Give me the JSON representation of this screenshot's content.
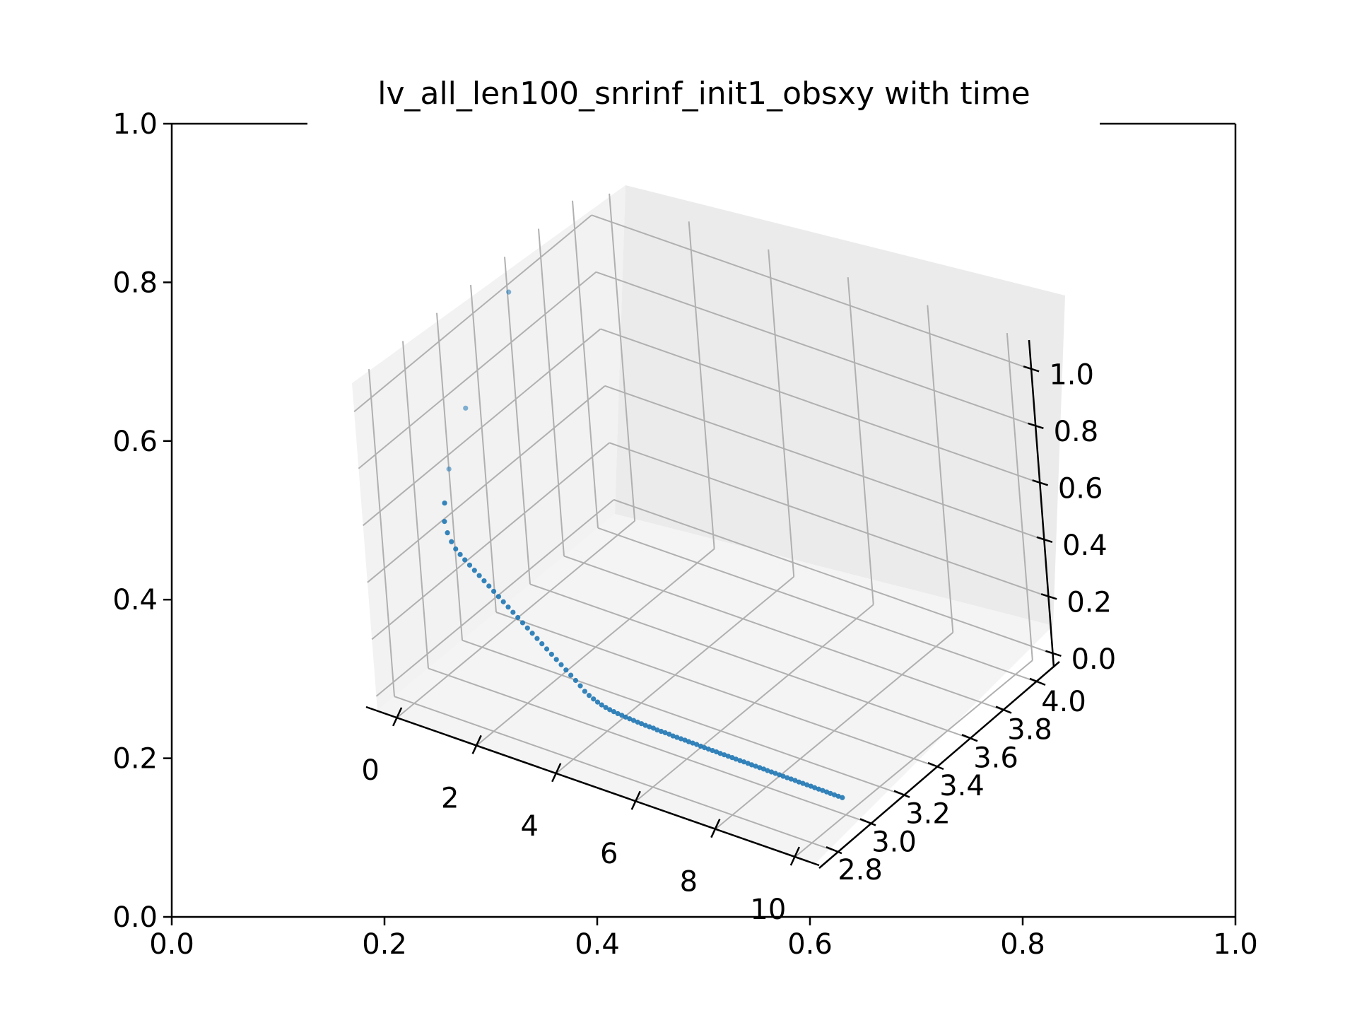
{
  "chart_data": {
    "type": "scatter",
    "projection": "3d",
    "title": "lv_all_len100_snrinf_init1_obsxy with time",
    "background_axes": {
      "xlim": [
        0.0,
        1.0
      ],
      "ylim": [
        0.0,
        1.0
      ],
      "x_ticks": [
        "0.0",
        "0.2",
        "0.4",
        "0.6",
        "0.8",
        "1.0"
      ],
      "y_ticks": [
        "0.0",
        "0.2",
        "0.4",
        "0.6",
        "0.8",
        "1.0"
      ]
    },
    "axes3d": {
      "x_ticks": [
        "0",
        "2",
        "4",
        "6",
        "8",
        "10"
      ],
      "y_ticks": [
        "2.8",
        "3.0",
        "3.2",
        "3.4",
        "3.6",
        "3.8",
        "4.0"
      ],
      "z_ticks": [
        "0.0",
        "0.2",
        "0.4",
        "0.6",
        "0.8",
        "1.0"
      ],
      "xlim": [
        -0.5,
        10.5
      ],
      "ylim": [
        2.7,
        4.1
      ],
      "zlim": [
        -0.05,
        1.1
      ],
      "grid": true
    },
    "series": [
      {
        "color": "#1f77b4",
        "points": [
          [
            0.0,
            3.5,
            1.05
          ],
          [
            0.1,
            3.19,
            0.8
          ],
          [
            0.2,
            3.05,
            0.66
          ],
          [
            0.3,
            2.99,
            0.575
          ],
          [
            0.4,
            2.96,
            0.53
          ],
          [
            0.5,
            2.95,
            0.5
          ],
          [
            0.6,
            2.947,
            0.475
          ],
          [
            0.7,
            2.946,
            0.455
          ],
          [
            0.8,
            2.947,
            0.44
          ],
          [
            0.9,
            2.949,
            0.425
          ],
          [
            1.0,
            2.952,
            0.41
          ],
          [
            1.1,
            2.955,
            0.395
          ],
          [
            1.2,
            2.958,
            0.38
          ],
          [
            1.3,
            2.961,
            0.365
          ],
          [
            1.4,
            2.964,
            0.35
          ],
          [
            1.5,
            2.967,
            0.335
          ],
          [
            1.6,
            2.97,
            0.32
          ],
          [
            1.7,
            2.973,
            0.305
          ],
          [
            1.8,
            2.976,
            0.29
          ],
          [
            1.9,
            2.979,
            0.275
          ],
          [
            2.0,
            2.982,
            0.26
          ],
          [
            2.1,
            2.985,
            0.245
          ],
          [
            2.2,
            2.988,
            0.23
          ],
          [
            2.3,
            2.991,
            0.215
          ],
          [
            2.4,
            2.994,
            0.2
          ],
          [
            2.5,
            2.997,
            0.185
          ],
          [
            2.6,
            3.0,
            0.17
          ],
          [
            2.7,
            3.003,
            0.155
          ],
          [
            2.8,
            3.006,
            0.14
          ],
          [
            2.9,
            3.009,
            0.125
          ],
          [
            3.0,
            3.012,
            0.11
          ],
          [
            3.1,
            3.015,
            0.095
          ],
          [
            3.2,
            3.018,
            0.08
          ],
          [
            3.3,
            3.02,
            0.065
          ],
          [
            3.4,
            3.021,
            0.05
          ],
          [
            3.5,
            3.022,
            0.04
          ],
          [
            3.6,
            3.023,
            0.032
          ],
          [
            3.7,
            3.023,
            0.026
          ],
          [
            3.8,
            3.023,
            0.021
          ],
          [
            3.9,
            3.023,
            0.017
          ],
          [
            4.0,
            3.023,
            0.014
          ],
          [
            4.1,
            3.023,
            0.012
          ],
          [
            4.2,
            3.023,
            0.01
          ],
          [
            4.3,
            3.023,
            0.009
          ],
          [
            4.4,
            3.022,
            0.008
          ],
          [
            4.5,
            3.022,
            0.007
          ],
          [
            4.6,
            3.022,
            0.006
          ],
          [
            4.7,
            3.022,
            0.005
          ],
          [
            4.8,
            3.021,
            0.005
          ],
          [
            4.9,
            3.021,
            0.004
          ],
          [
            5.0,
            3.021,
            0.004
          ],
          [
            5.1,
            3.021,
            0.004
          ],
          [
            5.2,
            3.02,
            0.003
          ],
          [
            5.3,
            3.02,
            0.003
          ],
          [
            5.4,
            3.02,
            0.003
          ],
          [
            5.5,
            3.02,
            0.003
          ],
          [
            5.6,
            3.019,
            0.002
          ],
          [
            5.7,
            3.019,
            0.002
          ],
          [
            5.8,
            3.019,
            0.002
          ],
          [
            5.9,
            3.019,
            0.002
          ],
          [
            6.0,
            3.018,
            0.002
          ],
          [
            6.1,
            3.018,
            0.002
          ],
          [
            6.2,
            3.018,
            0.002
          ],
          [
            6.3,
            3.018,
            0.001
          ],
          [
            6.4,
            3.017,
            0.001
          ],
          [
            6.5,
            3.017,
            0.001
          ],
          [
            6.6,
            3.017,
            0.001
          ],
          [
            6.7,
            3.017,
            0.001
          ],
          [
            6.8,
            3.016,
            0.001
          ],
          [
            6.9,
            3.016,
            0.001
          ],
          [
            7.0,
            3.016,
            0.001
          ],
          [
            7.1,
            3.016,
            0.001
          ],
          [
            7.2,
            3.015,
            0.001
          ],
          [
            7.3,
            3.015,
            0.001
          ],
          [
            7.4,
            3.015,
            0.001
          ],
          [
            7.5,
            3.015,
            0.001
          ],
          [
            7.6,
            3.014,
            0.001
          ],
          [
            7.7,
            3.014,
            0.001
          ],
          [
            7.8,
            3.014,
            0.001
          ],
          [
            7.9,
            3.014,
            0.001
          ],
          [
            8.0,
            3.013,
            0.001
          ],
          [
            8.1,
            3.013,
            0.001
          ],
          [
            8.2,
            3.013,
            0.001
          ],
          [
            8.3,
            3.013,
            0.001
          ],
          [
            8.4,
            3.012,
            0.001
          ],
          [
            8.5,
            3.012,
            0.001
          ],
          [
            8.6,
            3.012,
            0.001
          ],
          [
            8.7,
            3.012,
            0.001
          ],
          [
            8.8,
            3.011,
            0.001
          ],
          [
            8.9,
            3.011,
            0.001
          ],
          [
            9.0,
            3.011,
            0.001
          ],
          [
            9.1,
            3.011,
            0.001
          ],
          [
            9.2,
            3.01,
            0.001
          ],
          [
            9.3,
            3.01,
            0.001
          ],
          [
            9.4,
            3.01,
            0.001
          ],
          [
            9.5,
            3.01,
            0.001
          ],
          [
            9.6,
            3.009,
            0.001
          ],
          [
            9.7,
            3.009,
            0.001
          ],
          [
            9.8,
            3.009,
            0.001
          ],
          [
            9.9,
            3.009,
            0.001
          ]
        ]
      }
    ]
  }
}
